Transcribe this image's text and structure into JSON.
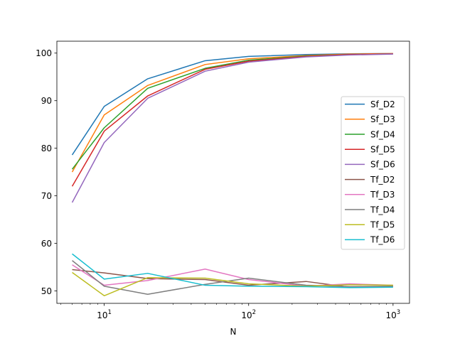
{
  "chart_data": {
    "type": "line",
    "xlabel": "N",
    "ylabel": "",
    "xscale": "log",
    "xlim": [
      4.7,
      1300
    ],
    "ylim": [
      47.4,
      102.5
    ],
    "x_ticks": [
      {
        "value": 10,
        "base": "10",
        "exp": "1"
      },
      {
        "value": 100,
        "base": "10",
        "exp": "2"
      },
      {
        "value": 1000,
        "base": "10",
        "exp": "3"
      }
    ],
    "y_ticks": [
      50,
      60,
      70,
      80,
      90,
      100
    ],
    "legend_position": "center-right",
    "x": [
      6,
      10,
      20,
      50,
      100,
      250,
      500,
      1000
    ],
    "series": [
      {
        "name": "Sf_D2",
        "color": "#1f77b4",
        "values": [
          78.6,
          88.8,
          94.6,
          98.4,
          99.3,
          99.7,
          99.85,
          99.9
        ]
      },
      {
        "name": "Sf_D3",
        "color": "#ff7f0e",
        "values": [
          75.0,
          87.0,
          93.2,
          97.6,
          98.8,
          99.5,
          99.8,
          99.9
        ]
      },
      {
        "name": "Sf_D4",
        "color": "#2ca02c",
        "values": [
          75.6,
          84.3,
          92.6,
          96.8,
          98.5,
          99.4,
          99.7,
          99.85
        ]
      },
      {
        "name": "Sf_D5",
        "color": "#d62728",
        "values": [
          72.0,
          83.6,
          91.0,
          96.6,
          98.3,
          99.3,
          99.7,
          99.85
        ]
      },
      {
        "name": "Sf_D6",
        "color": "#9467bd",
        "values": [
          68.6,
          81.2,
          90.5,
          96.2,
          98.1,
          99.2,
          99.6,
          99.8
        ]
      },
      {
        "name": "Tf_D2",
        "color": "#8c564b",
        "values": [
          54.5,
          53.8,
          52.6,
          52.4,
          51.2,
          52.0,
          50.8,
          51.0
        ]
      },
      {
        "name": "Tf_D3",
        "color": "#e377c2",
        "values": [
          55.5,
          51.2,
          52.2,
          54.6,
          52.4,
          51.0,
          51.5,
          51.2
        ]
      },
      {
        "name": "Tf_D4",
        "color": "#7f7f7f",
        "values": [
          56.4,
          51.0,
          49.3,
          51.4,
          52.7,
          51.2,
          50.9,
          51.0
        ]
      },
      {
        "name": "Tf_D5",
        "color": "#bcbd22",
        "values": [
          53.9,
          49.0,
          52.8,
          52.7,
          51.5,
          51.0,
          51.3,
          51.2
        ]
      },
      {
        "name": "Tf_D6",
        "color": "#17becf",
        "values": [
          57.8,
          52.5,
          53.7,
          51.2,
          51.0,
          50.9,
          50.7,
          50.8
        ]
      }
    ]
  }
}
